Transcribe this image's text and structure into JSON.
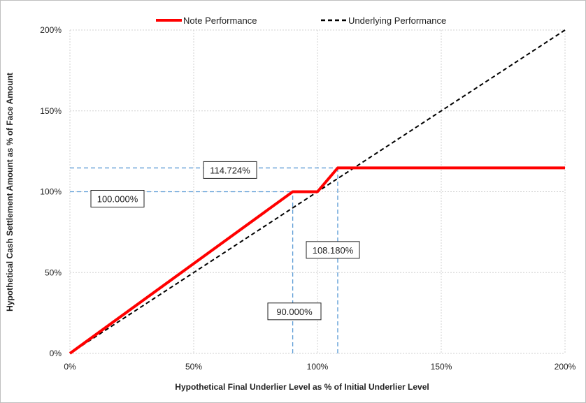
{
  "chart_data": {
    "type": "line",
    "xlabel": "Hypothetical Final Underlier Level as % of Initial Underlier Level",
    "ylabel": "Hypothetical Cash Settlement Amount as % of Face Amount",
    "xlim": [
      0,
      200
    ],
    "ylim": [
      0,
      200
    ],
    "x_ticks": [
      "0%",
      "50%",
      "100%",
      "150%",
      "200%"
    ],
    "y_ticks": [
      "0%",
      "50%",
      "100%",
      "150%",
      "200%"
    ],
    "grid": true,
    "legend_position": "top",
    "series": [
      {
        "name": "Note Performance",
        "color": "#ff0000",
        "style": "solid",
        "x": [
          0,
          90,
          100,
          108.18,
          200
        ],
        "y": [
          0,
          100,
          100,
          114.724,
          114.724
        ]
      },
      {
        "name": "Underlying Performance",
        "color": "#000000",
        "style": "dashed",
        "x": [
          0,
          200
        ],
        "y": [
          0,
          200
        ]
      }
    ],
    "reference_lines": {
      "color": "#5b9bd5",
      "horizontal": [
        100,
        114.724
      ],
      "vertical": [
        90,
        108.18
      ]
    },
    "annotations": [
      {
        "text": "114.724%",
        "x": 25,
        "y": 114.724
      },
      {
        "text": "100.000%",
        "x": 10,
        "y": 100
      },
      {
        "text": "108.180%",
        "x": 108.18,
        "y": 64
      },
      {
        "text": "90.000%",
        "x": 90,
        "y": 26
      }
    ]
  }
}
